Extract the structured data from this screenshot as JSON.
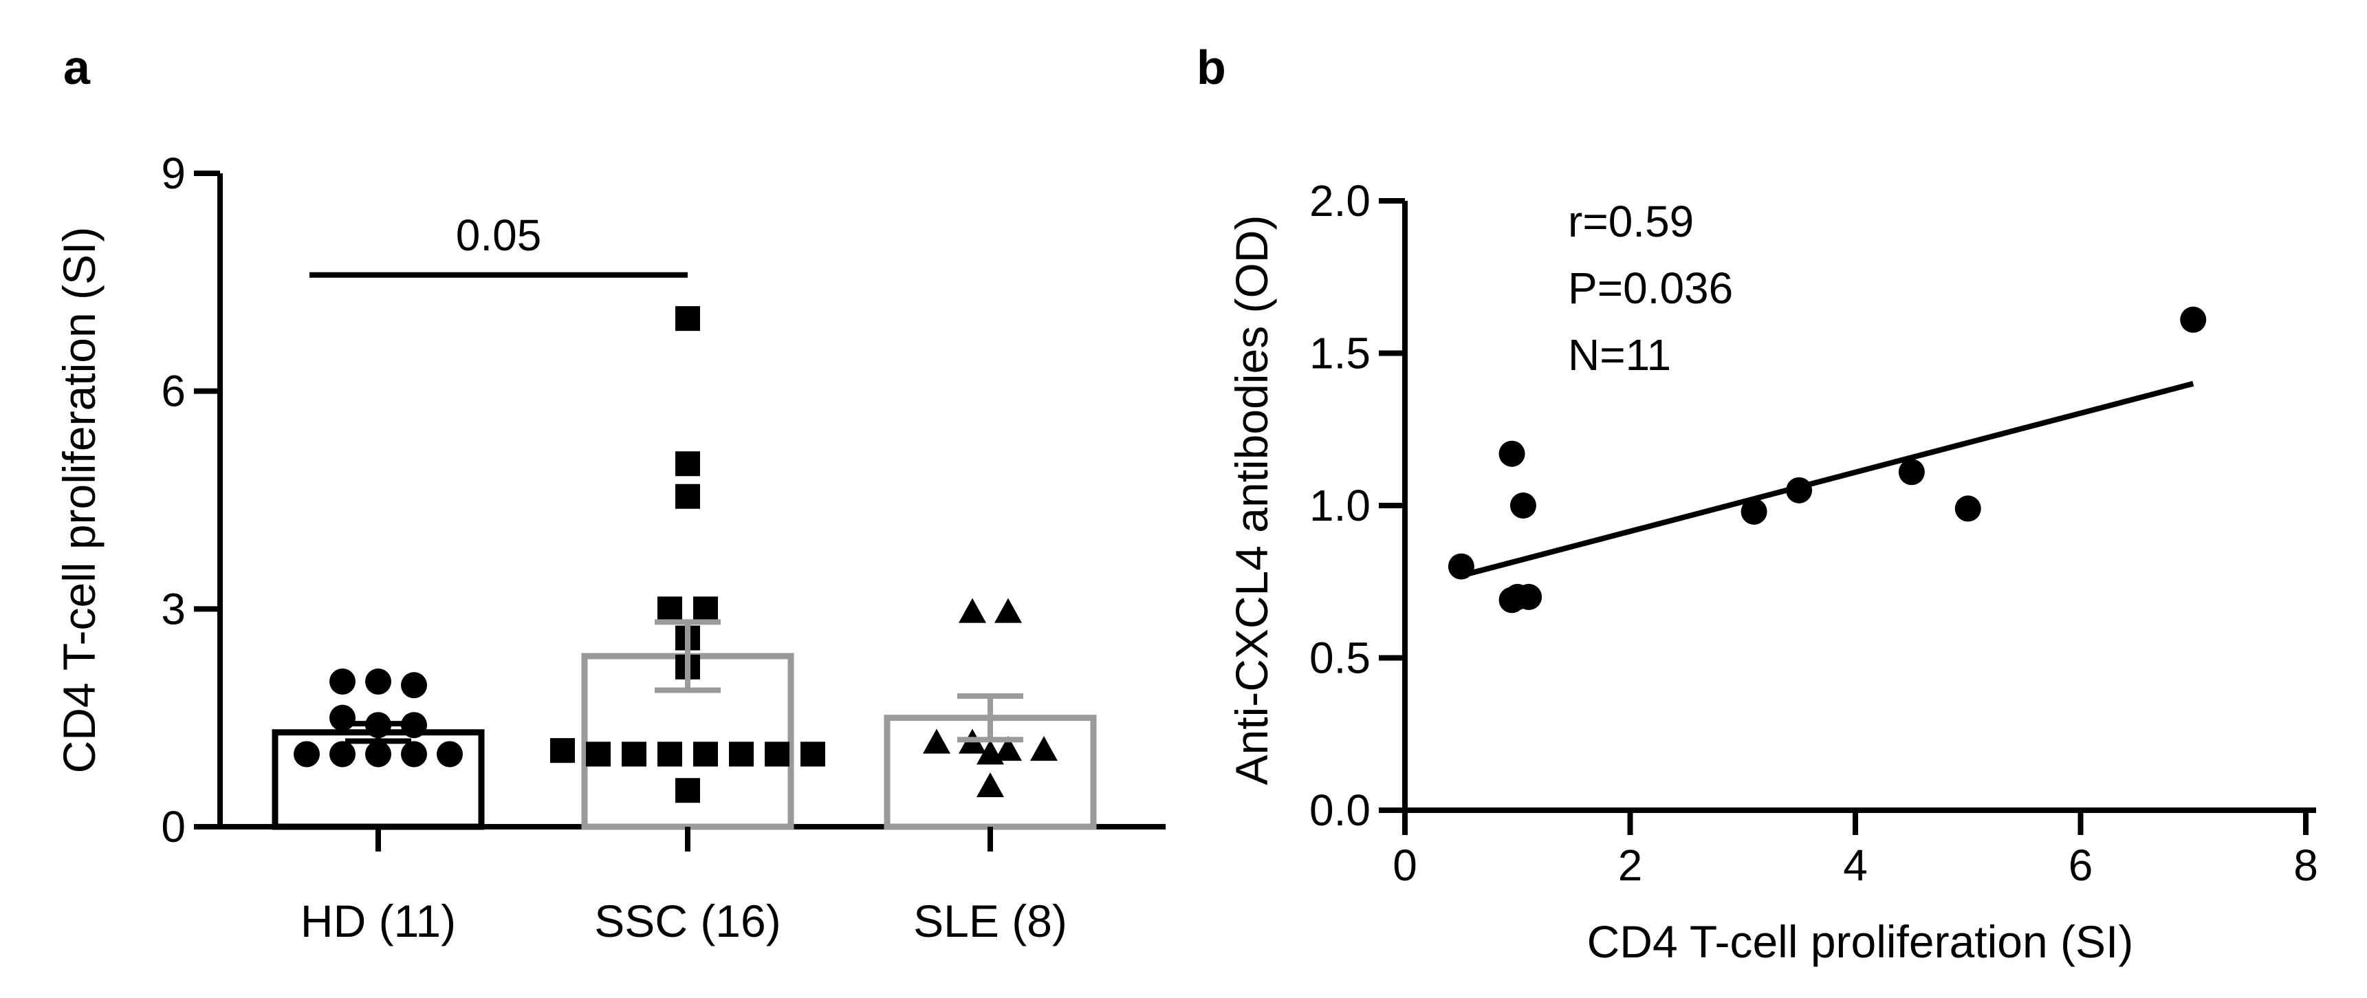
{
  "figure": {
    "panel_a_label": "a",
    "panel_b_label": "b"
  },
  "chart_data": [
    {
      "type": "bar",
      "panel": "a",
      "title": "",
      "xlabel": "",
      "ylabel": "CD4 T-cell proliferation (SI)",
      "ylim": [
        0,
        9
      ],
      "yticks": [
        "0",
        "3",
        "6",
        "9"
      ],
      "categories": [
        "HD (11)",
        "SSC (16)",
        "SLE (8)"
      ],
      "values": [
        1.3,
        2.35,
        1.5
      ],
      "sem": [
        0.12,
        0.47,
        0.3
      ],
      "bar_colors": [
        "#000000",
        "#9a9a9a",
        "#9a9a9a"
      ],
      "points": [
        {
          "category": 0,
          "marker": "circle",
          "values": [
            2.0,
            1.95,
            2.0,
            1.5,
            1.4,
            1.4,
            1.0,
            1.0,
            1.0,
            1.0,
            1.0
          ]
        },
        {
          "category": 1,
          "marker": "square",
          "values": [
            7.0,
            5.0,
            4.55,
            3.0,
            3.0,
            2.6,
            2.2,
            1.05,
            1.0,
            1.0,
            1.0,
            1.0,
            1.0,
            1.0,
            1.0,
            0.5
          ]
        },
        {
          "category": 2,
          "marker": "triangle",
          "values": [
            2.95,
            2.95,
            1.15,
            1.15,
            1.05,
            1.05,
            1.0,
            0.55
          ]
        }
      ],
      "annotation": {
        "text": "0.05",
        "from_category": 0,
        "to_category": 1,
        "y": 7.6
      }
    },
    {
      "type": "scatter",
      "panel": "b",
      "title": "",
      "xlabel": "CD4 T-cell proliferation (SI)",
      "ylabel": "Anti-CXCL4 antibodies (OD)",
      "xlim": [
        0,
        8
      ],
      "ylim": [
        0,
        2.0
      ],
      "xticks": [
        "0",
        "2",
        "4",
        "6",
        "8"
      ],
      "yticks": [
        "0.0",
        "0.5",
        "1.0",
        "1.5",
        "2.0"
      ],
      "x": [
        0.5,
        0.95,
        1.05,
        1.0,
        1.1,
        0.95,
        3.1,
        3.5,
        4.5,
        5.0,
        7.0
      ],
      "y": [
        0.8,
        1.17,
        1.0,
        0.7,
        0.7,
        0.69,
        0.98,
        1.05,
        1.11,
        0.99,
        1.61
      ],
      "regression": {
        "x": [
          0.5,
          7.0
        ],
        "y": [
          0.77,
          1.4
        ]
      },
      "annotations": [
        "r=0.59",
        "P=0.036",
        "N=11"
      ]
    }
  ]
}
